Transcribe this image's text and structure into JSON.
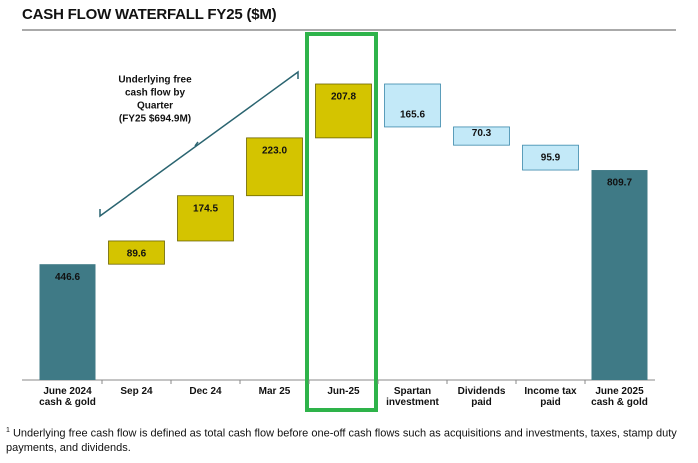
{
  "chart_data": {
    "type": "waterfall",
    "title": "CASH FLOW WATERFALL FY25 ($M)",
    "categories": [
      "June 2024 cash & gold",
      "Sep 24",
      "Dec 24",
      "Mar 25",
      "Jun-25",
      "Spartan investment",
      "Dividends paid",
      "Income tax paid",
      "June 2025 cash & gold"
    ],
    "values": [
      446.6,
      89.6,
      174.5,
      223.0,
      207.8,
      165.6,
      70.3,
      95.9,
      809.7
    ],
    "value_labels": [
      "446.6",
      "89.6",
      "174.5",
      "223.0",
      "207.8",
      "165.6",
      "70.3",
      "95.9",
      "809.7"
    ],
    "measures": [
      "total",
      "increase",
      "increase",
      "increase",
      "increase",
      "decrease",
      "decrease",
      "decrease",
      "total"
    ],
    "colors": {
      "total": "#3f7a86",
      "increase": "#d4c400",
      "decrease": "#c3e9f8"
    },
    "annotation": [
      "Underlying free",
      "cash flow by",
      "Quarter",
      "(FY25 $694.9M)"
    ],
    "footnote_marker": "1",
    "footnote": "Underlying free cash flow is defined as total cash flow before one-off cash flows such as acquisitions and investments, taxes, stamp duty payments, and dividends."
  }
}
